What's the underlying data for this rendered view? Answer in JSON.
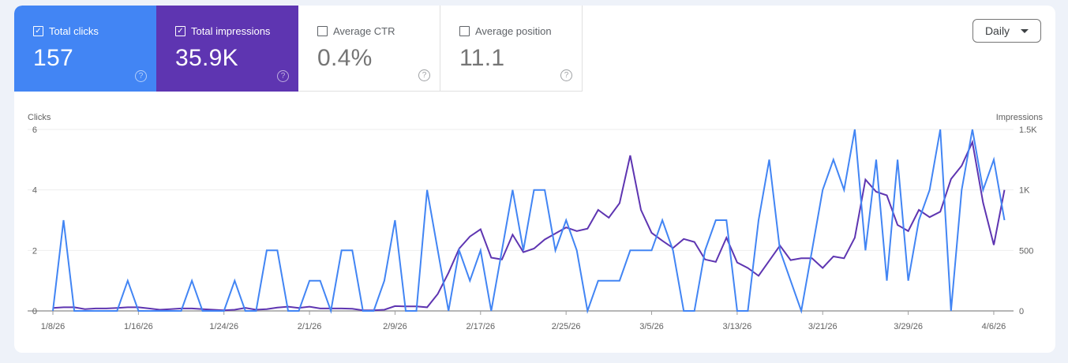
{
  "metrics": [
    {
      "label": "Total clicks",
      "value": "157",
      "checked": true,
      "color": "#4285f4"
    },
    {
      "label": "Total impressions",
      "value": "35.9K",
      "checked": true,
      "color": "#5e35b1"
    },
    {
      "label": "Average CTR",
      "value": "0.4%",
      "checked": false
    },
    {
      "label": "Average position",
      "value": "11.1",
      "checked": false
    }
  ],
  "help_icon": "?",
  "check_icon": "✓",
  "granularity": {
    "selected": "Daily"
  },
  "chart_data": {
    "type": "line",
    "left_axis_label": "Clicks",
    "right_axis_label": "Impressions",
    "left_ylim": [
      0,
      6
    ],
    "right_ylim": [
      0,
      1500
    ],
    "left_ticks": [
      "0",
      "2",
      "4",
      "6"
    ],
    "right_ticks": [
      "0",
      "500",
      "1K",
      "1.5K"
    ],
    "x_ticks": [
      "1/8/26",
      "1/16/26",
      "1/24/26",
      "2/1/26",
      "2/9/26",
      "2/17/26",
      "2/25/26",
      "3/5/26",
      "3/13/26",
      "3/21/26",
      "3/29/26",
      "4/6/26"
    ],
    "grid": true,
    "x": [
      "1/8/26",
      "1/9/26",
      "1/10/26",
      "1/11/26",
      "1/12/26",
      "1/13/26",
      "1/14/26",
      "1/15/26",
      "1/16/26",
      "1/17/26",
      "1/18/26",
      "1/19/26",
      "1/20/26",
      "1/21/26",
      "1/22/26",
      "1/23/26",
      "1/24/26",
      "1/25/26",
      "1/26/26",
      "1/27/26",
      "1/28/26",
      "1/29/26",
      "1/30/26",
      "1/31/26",
      "2/1/26",
      "2/2/26",
      "2/3/26",
      "2/4/26",
      "2/5/26",
      "2/6/26",
      "2/7/26",
      "2/8/26",
      "2/9/26",
      "2/10/26",
      "2/11/26",
      "2/12/26",
      "2/13/26",
      "2/14/26",
      "2/15/26",
      "2/16/26",
      "2/17/26",
      "2/18/26",
      "2/19/26",
      "2/20/26",
      "2/21/26",
      "2/22/26",
      "2/23/26",
      "2/24/26",
      "2/25/26",
      "2/26/26",
      "2/27/26",
      "2/28/26",
      "3/1/26",
      "3/2/26",
      "3/3/26",
      "3/4/26",
      "3/5/26",
      "3/6/26",
      "3/7/26",
      "3/8/26",
      "3/9/26",
      "3/10/26",
      "3/11/26",
      "3/12/26",
      "3/13/26",
      "3/14/26",
      "3/15/26",
      "3/16/26",
      "3/17/26",
      "3/18/26",
      "3/19/26",
      "3/20/26",
      "3/21/26",
      "3/22/26",
      "3/23/26",
      "3/24/26",
      "3/25/26",
      "3/26/26",
      "3/27/26",
      "3/28/26",
      "3/29/26",
      "3/30/26",
      "3/31/26",
      "4/1/26",
      "4/2/26",
      "4/3/26",
      "4/4/26",
      "4/5/26",
      "4/6/26",
      "4/7/26"
    ],
    "series": [
      {
        "name": "Clicks",
        "axis": "left",
        "color": "#4285f4",
        "values": [
          0,
          3,
          0,
          0,
          0,
          0,
          0,
          1,
          0,
          0,
          0,
          0,
          0,
          1,
          0,
          0,
          0,
          1,
          0,
          0,
          2,
          2,
          0,
          0,
          1,
          1,
          0,
          2,
          2,
          0,
          0,
          1,
          3,
          0,
          0,
          4,
          2,
          0,
          2,
          1,
          2,
          0,
          2,
          4,
          2,
          4,
          4,
          2,
          3,
          2,
          0,
          1,
          1,
          1,
          2,
          2,
          2,
          3,
          2,
          0,
          0,
          2,
          3,
          3,
          0,
          0,
          3,
          5,
          2,
          1,
          0,
          2,
          4,
          5,
          4,
          6,
          2,
          5,
          1,
          5,
          1,
          3,
          4,
          6,
          0,
          4,
          6,
          4,
          5,
          3
        ]
      },
      {
        "name": "Impressions",
        "axis": "right",
        "color": "#5e35b1",
        "values": [
          25,
          30,
          30,
          15,
          20,
          20,
          25,
          30,
          30,
          20,
          10,
          15,
          20,
          20,
          15,
          10,
          5,
          10,
          25,
          10,
          15,
          28,
          35,
          25,
          35,
          20,
          20,
          20,
          18,
          5,
          5,
          10,
          40,
          37,
          37,
          30,
          140,
          315,
          515,
          615,
          675,
          440,
          425,
          630,
          485,
          515,
          590,
          640,
          690,
          660,
          680,
          835,
          770,
          890,
          1285,
          835,
          645,
          580,
          520,
          595,
          570,
          425,
          405,
          605,
          400,
          355,
          290,
          415,
          540,
          420,
          435,
          435,
          355,
          450,
          435,
          605,
          1085,
          985,
          955,
          710,
          660,
          835,
          775,
          820,
          1090,
          1200,
          1395,
          895,
          545,
          1000
        ]
      }
    ]
  }
}
